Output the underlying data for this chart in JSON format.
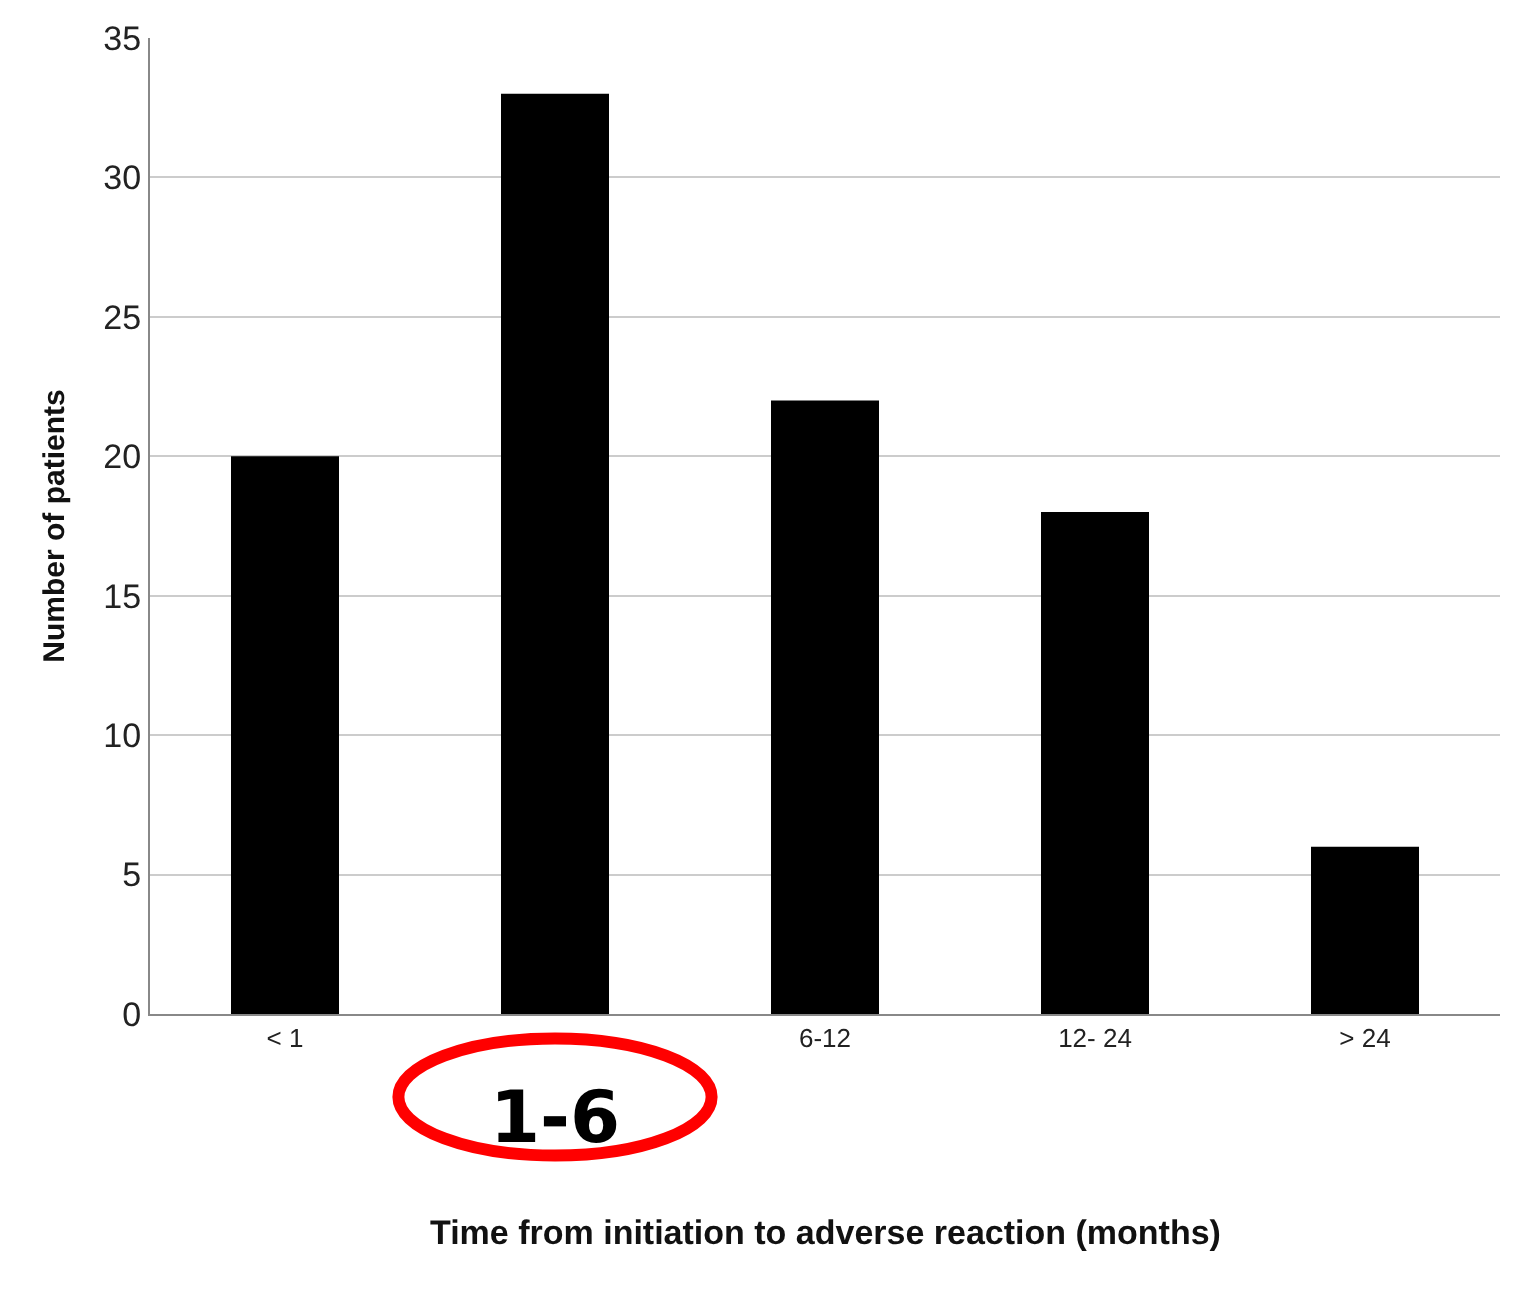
{
  "chart_data": {
    "type": "bar",
    "xlabel": "Time from initiation to adverse reaction (months)",
    "ylabel": "Number of patients",
    "categories": [
      "< 1",
      "1-6",
      "6-12",
      "12- 24",
      "> 24"
    ],
    "values": [
      20,
      33,
      22,
      18,
      6
    ],
    "color": "#000000",
    "ylim": [
      0,
      35
    ],
    "yticks": [
      0,
      5,
      10,
      15,
      20,
      25,
      30,
      35
    ],
    "grid": "y"
  }
}
